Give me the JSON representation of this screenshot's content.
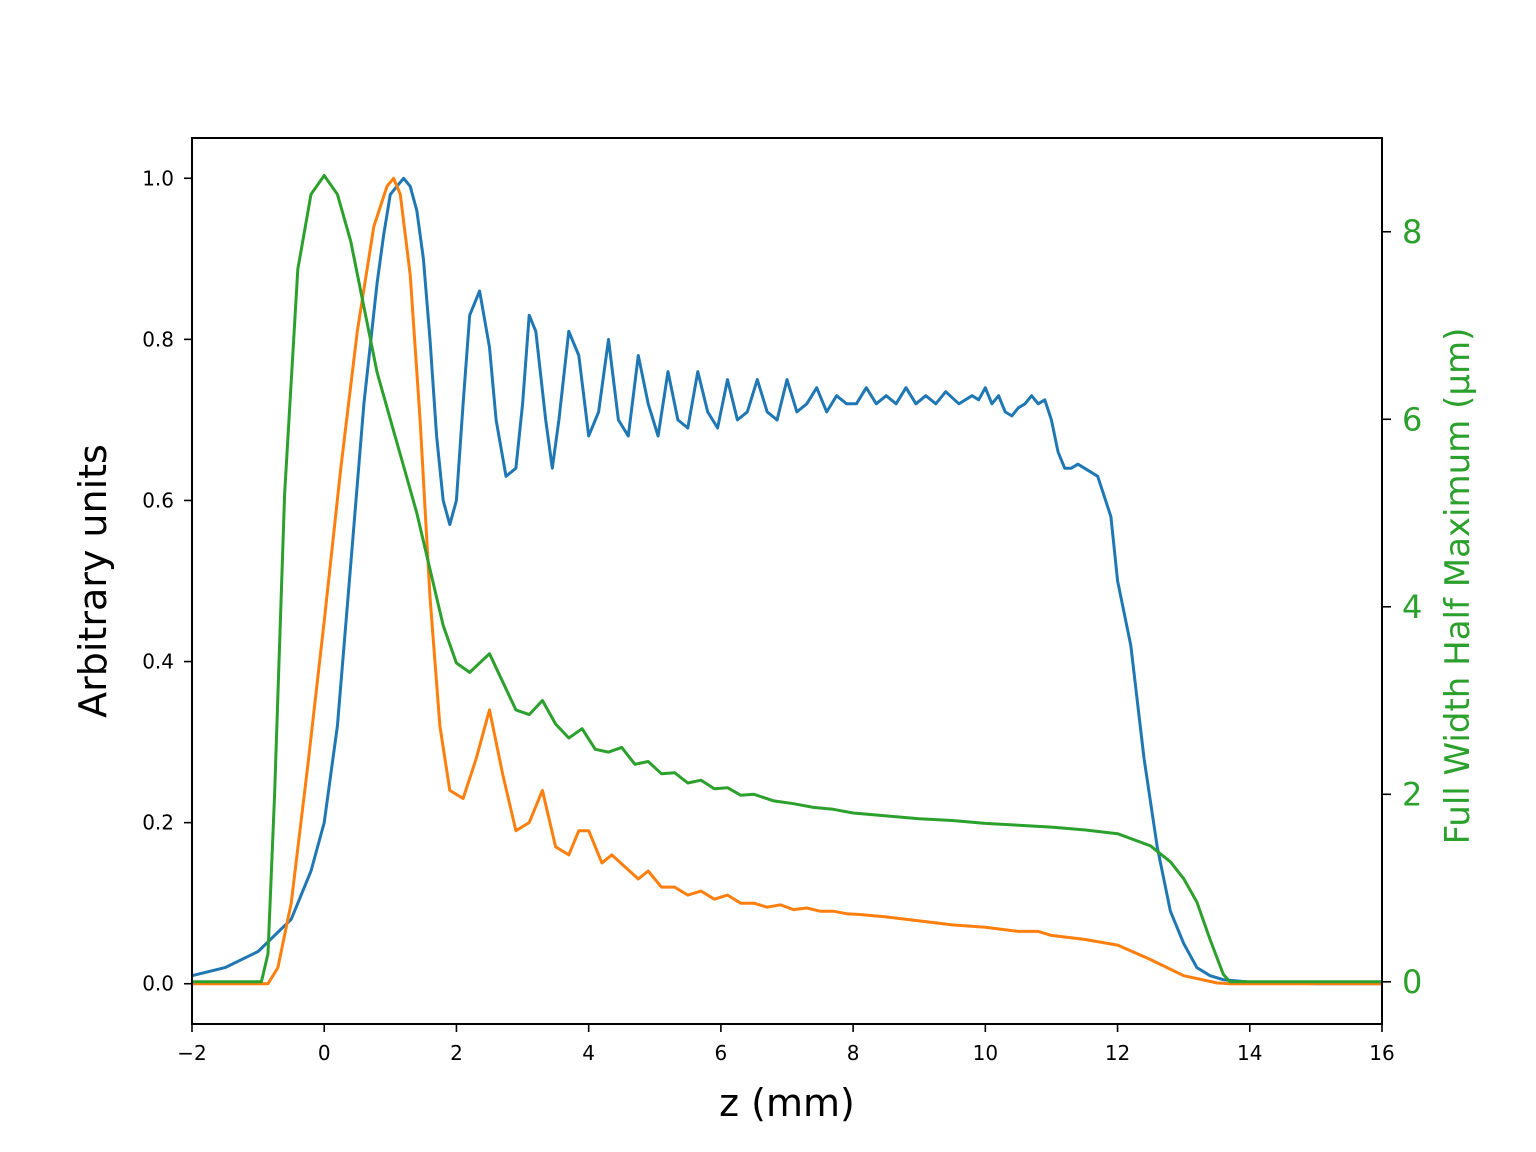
{
  "chart_data": {
    "type": "line",
    "title": "",
    "xlabel": "z (mm)",
    "ylabel": "Arbitrary units",
    "y2label": "Full Width Half Maximum (µm)",
    "xlim": [
      -2,
      16
    ],
    "ylim": [
      -0.05,
      1.05
    ],
    "y2lim": [
      -0.45,
      9.0
    ],
    "xticks": [
      -2,
      0,
      2,
      4,
      6,
      8,
      10,
      12,
      14,
      16
    ],
    "xtick_labels": [
      "−2",
      "0",
      "2",
      "4",
      "6",
      "8",
      "10",
      "12",
      "14",
      "16"
    ],
    "yticks": [
      0.0,
      0.2,
      0.4,
      0.6,
      0.8,
      1.0
    ],
    "ytick_labels": [
      "0.0",
      "0.2",
      "0.4",
      "0.6",
      "0.8",
      "1.0"
    ],
    "y2ticks": [
      0,
      2,
      4,
      6,
      8
    ],
    "y2tick_labels": [
      "0",
      "2",
      "4",
      "6",
      "8"
    ],
    "grid": false,
    "series": [
      {
        "color": "#1f77b4",
        "axis": "left",
        "x": [
          -2,
          -1.5,
          -1,
          -0.5,
          -0.2,
          0,
          0.2,
          0.4,
          0.6,
          0.8,
          0.9,
          1,
          1.1,
          1.2,
          1.3,
          1.4,
          1.5,
          1.6,
          1.7,
          1.8,
          1.9,
          2,
          2.1,
          2.2,
          2.35,
          2.5,
          2.6,
          2.75,
          2.9,
          3,
          3.1,
          3.2,
          3.35,
          3.45,
          3.55,
          3.7,
          3.85,
          4,
          4.15,
          4.3,
          4.45,
          4.6,
          4.75,
          4.9,
          5.05,
          5.2,
          5.35,
          5.5,
          5.65,
          5.8,
          5.95,
          6.1,
          6.25,
          6.4,
          6.55,
          6.7,
          6.85,
          7.0,
          7.15,
          7.3,
          7.45,
          7.6,
          7.75,
          7.9,
          8.05,
          8.2,
          8.35,
          8.5,
          8.65,
          8.8,
          8.95,
          9.1,
          9.25,
          9.4,
          9.6,
          9.8,
          9.9,
          10.0,
          10.1,
          10.2,
          10.3,
          10.4,
          10.5,
          10.6,
          10.7,
          10.8,
          10.9,
          11.0,
          11.1,
          11.2,
          11.3,
          11.4,
          11.5,
          11.7,
          11.9,
          12.0,
          12.2,
          12.4,
          12.6,
          12.8,
          13.0,
          13.2,
          13.4,
          13.6,
          14,
          14.5,
          15,
          16
        ],
        "y": [
          0.01,
          0.02,
          0.04,
          0.08,
          0.14,
          0.2,
          0.32,
          0.52,
          0.72,
          0.87,
          0.93,
          0.98,
          0.99,
          1.0,
          0.99,
          0.96,
          0.9,
          0.8,
          0.68,
          0.6,
          0.57,
          0.6,
          0.72,
          0.83,
          0.86,
          0.79,
          0.7,
          0.63,
          0.64,
          0.72,
          0.83,
          0.81,
          0.7,
          0.64,
          0.7,
          0.81,
          0.78,
          0.68,
          0.71,
          0.8,
          0.7,
          0.68,
          0.78,
          0.72,
          0.68,
          0.76,
          0.7,
          0.69,
          0.76,
          0.71,
          0.69,
          0.75,
          0.7,
          0.71,
          0.75,
          0.71,
          0.7,
          0.75,
          0.71,
          0.72,
          0.74,
          0.71,
          0.73,
          0.72,
          0.72,
          0.74,
          0.72,
          0.73,
          0.72,
          0.74,
          0.72,
          0.73,
          0.72,
          0.735,
          0.72,
          0.73,
          0.725,
          0.74,
          0.72,
          0.73,
          0.71,
          0.705,
          0.715,
          0.72,
          0.73,
          0.72,
          0.725,
          0.7,
          0.66,
          0.64,
          0.64,
          0.645,
          0.64,
          0.63,
          0.58,
          0.5,
          0.42,
          0.28,
          0.17,
          0.09,
          0.05,
          0.02,
          0.01,
          0.005,
          0.002,
          0.001,
          0.0,
          0.0
        ],
        "note": ""
      },
      {
        "color": "#ff7f0e",
        "axis": "left",
        "x": [
          -2,
          -1,
          -0.85,
          -0.7,
          -0.5,
          -0.25,
          0,
          0.25,
          0.5,
          0.75,
          0.95,
          1.05,
          1.15,
          1.3,
          1.45,
          1.6,
          1.75,
          1.9,
          2.1,
          2.3,
          2.5,
          2.7,
          2.9,
          3.1,
          3.3,
          3.5,
          3.7,
          3.85,
          4.0,
          4.2,
          4.35,
          4.55,
          4.75,
          4.9,
          5.1,
          5.3,
          5.5,
          5.7,
          5.9,
          6.1,
          6.3,
          6.5,
          6.7,
          6.9,
          7.1,
          7.3,
          7.5,
          7.7,
          7.9,
          8.1,
          8.5,
          9,
          9.5,
          10,
          10.5,
          10.8,
          11,
          11.5,
          12,
          12.5,
          13,
          13.5,
          13.7,
          16
        ],
        "y": [
          0,
          0,
          0.0,
          0.02,
          0.1,
          0.27,
          0.45,
          0.64,
          0.81,
          0.94,
          0.99,
          1.0,
          0.98,
          0.88,
          0.7,
          0.48,
          0.32,
          0.24,
          0.23,
          0.28,
          0.34,
          0.26,
          0.19,
          0.2,
          0.24,
          0.17,
          0.16,
          0.19,
          0.19,
          0.15,
          0.16,
          0.145,
          0.13,
          0.14,
          0.12,
          0.12,
          0.11,
          0.115,
          0.105,
          0.11,
          0.1,
          0.1,
          0.095,
          0.098,
          0.092,
          0.094,
          0.09,
          0.09,
          0.087,
          0.086,
          0.083,
          0.078,
          0.073,
          0.07,
          0.065,
          0.065,
          0.06,
          0.055,
          0.048,
          0.03,
          0.01,
          0.001,
          0,
          0
        ],
        "note": ""
      },
      {
        "color": "#2ca02c",
        "axis": "right",
        "x": [
          -2,
          -0.95,
          -0.85,
          -0.75,
          -0.6,
          -0.4,
          -0.2,
          0,
          0.2,
          0.4,
          0.6,
          0.8,
          1.0,
          1.2,
          1.4,
          1.6,
          1.8,
          2.0,
          2.2,
          2.5,
          2.7,
          2.9,
          3.1,
          3.3,
          3.5,
          3.7,
          3.9,
          4.1,
          4.3,
          4.5,
          4.7,
          4.9,
          5.1,
          5.3,
          5.5,
          5.7,
          5.9,
          6.1,
          6.3,
          6.5,
          6.8,
          7.1,
          7.4,
          7.7,
          8.0,
          8.5,
          9,
          9.5,
          10,
          10.5,
          11,
          11.5,
          12,
          12.5,
          12.8,
          13.0,
          13.2,
          13.4,
          13.6,
          13.7,
          16
        ],
        "y": [
          0,
          0,
          0.3,
          2.0,
          5.2,
          7.6,
          8.4,
          8.6,
          8.4,
          7.9,
          7.2,
          6.5,
          6.0,
          5.5,
          5.0,
          4.4,
          3.8,
          3.4,
          3.3,
          3.5,
          3.2,
          2.9,
          2.85,
          3.0,
          2.75,
          2.6,
          2.7,
          2.48,
          2.45,
          2.5,
          2.32,
          2.35,
          2.22,
          2.23,
          2.12,
          2.15,
          2.06,
          2.07,
          1.99,
          2.0,
          1.93,
          1.9,
          1.86,
          1.84,
          1.8,
          1.77,
          1.74,
          1.72,
          1.69,
          1.67,
          1.65,
          1.62,
          1.58,
          1.45,
          1.28,
          1.1,
          0.85,
          0.45,
          0.08,
          0.0,
          0.0
        ],
        "note": ""
      }
    ]
  }
}
